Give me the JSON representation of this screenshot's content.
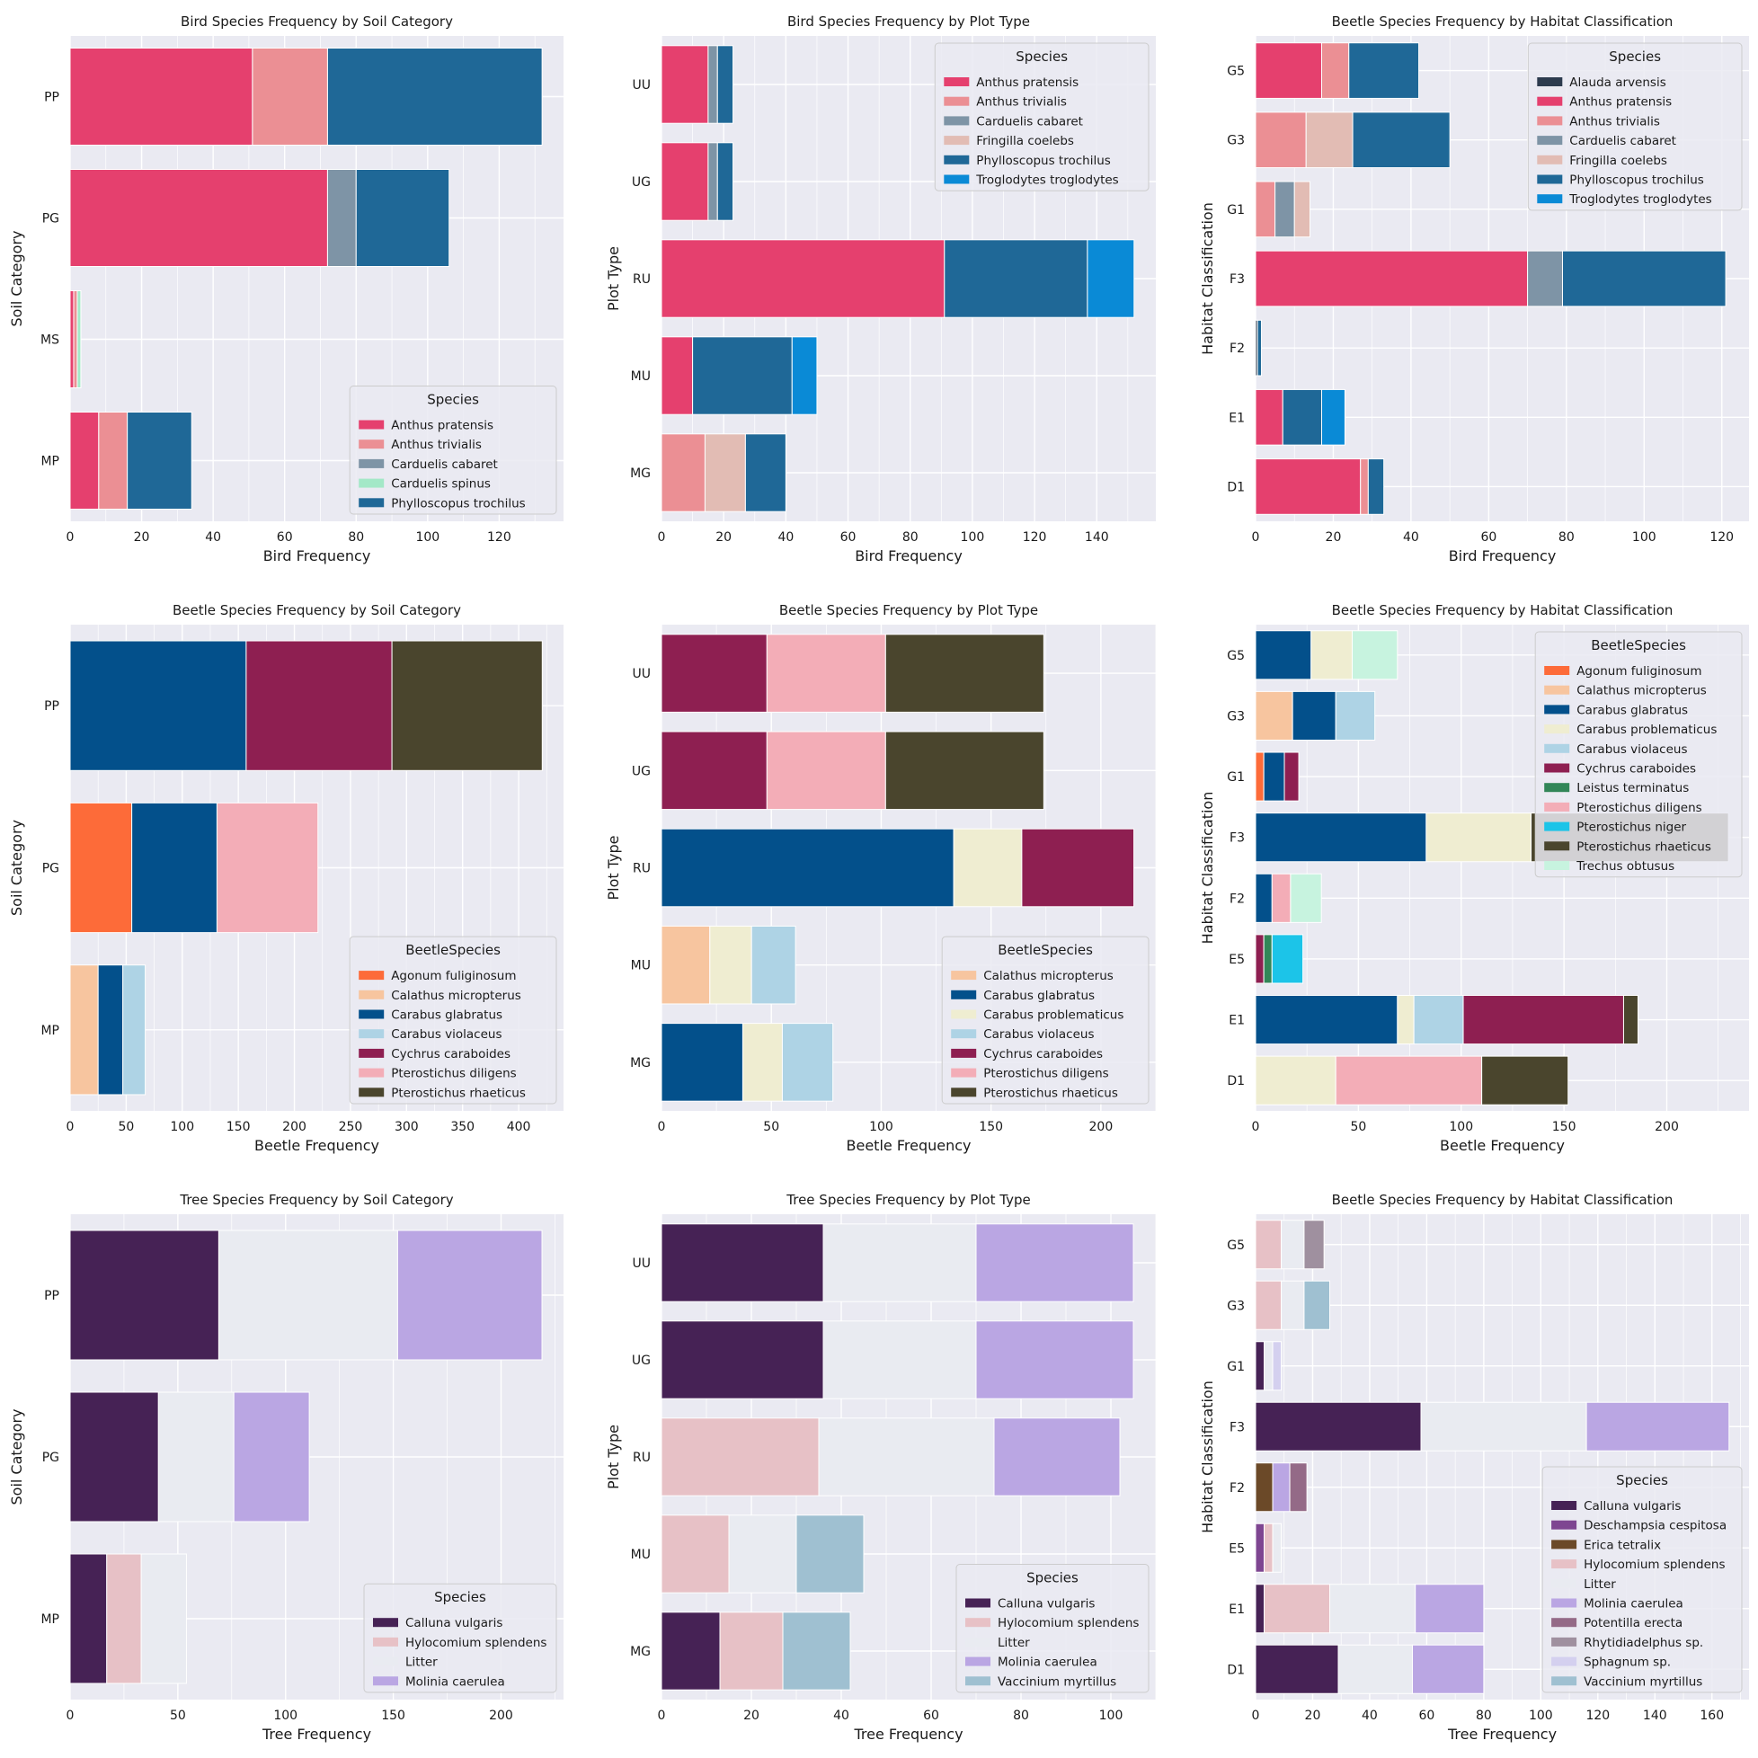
{
  "colors": {
    "Anthus pratensis": "#e5406e",
    "Anthus trivialis": "#eb8f94",
    "Carduelis cabaret": "#7e94a6",
    "Carduelis spinus": "#a3e8c7",
    "Phylloscopus trochilus": "#1f6897",
    "Troglodytes troglodytes": "#0a8ad6",
    "Fringilla coelebs": "#e2bcb4",
    "Alauda arvensis": "#2d3b4e",
    "Agonum fuliginosum": "#fd6b39",
    "Calathus micropterus": "#f7c59f",
    "Carabus glabratus": "#03508b",
    "Carabus problematicus": "#efedd1",
    "Carabus violaceus": "#aed3e5",
    "Cychrus caraboides": "#8e1f51",
    "Leistus terminatus": "#328658",
    "Pterostichus diligens": "#f3adb7",
    "Pterostichus niger": "#1cc4e8",
    "Pterostichus rhaeticus": "#4a452d",
    "Trechus obtusus": "#c7f3df",
    "Calluna vulgaris": "#462255",
    "Hylocomium splendens": "#e7c1c6",
    "Litter": "#e9ebf1",
    "Molinia caerulea": "#baa6e3",
    "Vaccinium myrtillus": "#9fc0d1",
    "Deschampsia cespitosa": "#7e4691",
    "Erica tetralix": "#6b4928",
    "Potentilla erecta": "#946a87",
    "Rhytidiadelphus sp.": "#9f909f",
    "Sphagnum sp.": "#d4d0ef"
  },
  "chart_data": [
    {
      "type": "bar",
      "orientation": "horizontal",
      "stacked": true,
      "title": "Bird Species Frequency by Soil Category",
      "xlabel": "Bird Frequency",
      "ylabel": "Soil Category",
      "xlim": [
        0,
        138
      ],
      "xticks": [
        0,
        20,
        40,
        60,
        80,
        100,
        120
      ],
      "categories": [
        "MP",
        "MS",
        "PG",
        "PP"
      ],
      "legend_title": "Species",
      "legend_position": "lower right",
      "series": [
        {
          "name": "Anthus pratensis",
          "values": [
            8,
            1,
            72,
            51
          ]
        },
        {
          "name": "Anthus trivialis",
          "values": [
            8,
            1,
            0,
            21
          ]
        },
        {
          "name": "Carduelis cabaret",
          "values": [
            0,
            0,
            8,
            0
          ]
        },
        {
          "name": "Carduelis spinus",
          "values": [
            0,
            1,
            0,
            0
          ]
        },
        {
          "name": "Phylloscopus trochilus",
          "values": [
            18,
            0,
            26,
            60
          ]
        }
      ]
    },
    {
      "type": "bar",
      "orientation": "horizontal",
      "stacked": true,
      "title": "Bird Species Frequency by Plot Type",
      "xlabel": "Bird Frequency",
      "ylabel": "Plot Type",
      "xlim": [
        0,
        159
      ],
      "xticks": [
        0,
        20,
        40,
        60,
        80,
        100,
        120,
        140
      ],
      "categories": [
        "MG",
        "MU",
        "RU",
        "UG",
        "UU"
      ],
      "legend_title": "Species",
      "legend_position": "upper right",
      "series": [
        {
          "name": "Anthus pratensis",
          "values": [
            0,
            10,
            91,
            15,
            15
          ]
        },
        {
          "name": "Anthus trivialis",
          "values": [
            14,
            0,
            0,
            0,
            0
          ]
        },
        {
          "name": "Carduelis cabaret",
          "values": [
            0,
            0,
            0,
            3,
            3
          ]
        },
        {
          "name": "Fringilla coelebs",
          "values": [
            13,
            0,
            0,
            0,
            0
          ]
        },
        {
          "name": "Phylloscopus trochilus",
          "values": [
            13,
            32,
            46,
            5,
            5
          ]
        },
        {
          "name": "Troglodytes troglodytes",
          "values": [
            0,
            8,
            15,
            0,
            0
          ]
        }
      ]
    },
    {
      "type": "bar",
      "orientation": "horizontal",
      "stacked": true,
      "title": "Beetle Species Frequency by Habitat Classification",
      "xlabel": "Bird Frequency",
      "ylabel": "Habitat Classification",
      "xlim": [
        0,
        127
      ],
      "xticks": [
        0,
        20,
        40,
        60,
        80,
        100,
        120
      ],
      "categories": [
        "D1",
        "E1",
        "F2",
        "F3",
        "G1",
        "G3",
        "G5"
      ],
      "legend_title": "Species",
      "legend_position": "upper right",
      "series": [
        {
          "name": "Alauda arvensis",
          "values": [
            0,
            0,
            0.5,
            0,
            0,
            0,
            0
          ]
        },
        {
          "name": "Anthus pratensis",
          "values": [
            27,
            7,
            0,
            70,
            0,
            0,
            17
          ]
        },
        {
          "name": "Anthus trivialis",
          "values": [
            2,
            0,
            0,
            0,
            5,
            13,
            7
          ]
        },
        {
          "name": "Carduelis cabaret",
          "values": [
            0,
            0,
            0,
            9,
            5,
            0,
            0
          ]
        },
        {
          "name": "Fringilla coelebs",
          "values": [
            0,
            0,
            0,
            0,
            4,
            12,
            0
          ]
        },
        {
          "name": "Phylloscopus trochilus",
          "values": [
            4,
            10,
            1,
            42,
            0,
            25,
            18
          ]
        },
        {
          "name": "Troglodytes troglodytes",
          "values": [
            0,
            6,
            0,
            0,
            0,
            0,
            0
          ]
        }
      ]
    },
    {
      "type": "bar",
      "orientation": "horizontal",
      "stacked": true,
      "title": "Beetle Species Frequency by Soil Category",
      "xlabel": "Beetle Frequency",
      "ylabel": "Soil Category",
      "xlim": [
        0,
        440
      ],
      "xticks": [
        0,
        50,
        100,
        150,
        200,
        250,
        300,
        350,
        400
      ],
      "categories": [
        "MP",
        "PG",
        "PP"
      ],
      "legend_title": "BeetleSpecies",
      "legend_position": "lower right",
      "series": [
        {
          "name": "Agonum fuliginosum",
          "values": [
            0,
            55,
            0
          ]
        },
        {
          "name": "Calathus micropterus",
          "values": [
            25,
            0,
            0
          ]
        },
        {
          "name": "Carabus glabratus",
          "values": [
            22,
            76,
            157
          ]
        },
        {
          "name": "Carabus violaceus",
          "values": [
            20,
            0,
            0
          ]
        },
        {
          "name": "Cychrus caraboides",
          "values": [
            0,
            0,
            130
          ]
        },
        {
          "name": "Pterostichus diligens",
          "values": [
            0,
            90,
            0
          ]
        },
        {
          "name": "Pterostichus rhaeticus",
          "values": [
            0,
            0,
            134
          ]
        }
      ]
    },
    {
      "type": "bar",
      "orientation": "horizontal",
      "stacked": true,
      "title": "Beetle Species Frequency by Plot Type",
      "xlabel": "Beetle Frequency",
      "ylabel": "Plot Type",
      "xlim": [
        0,
        225
      ],
      "xticks": [
        0,
        50,
        100,
        150,
        200
      ],
      "categories": [
        "MG",
        "MU",
        "RU",
        "UG",
        "UU"
      ],
      "legend_title": "BeetleSpecies",
      "legend_position": "lower right",
      "series": [
        {
          "name": "Calathus micropterus",
          "values": [
            0,
            22,
            0,
            0,
            0
          ]
        },
        {
          "name": "Carabus glabratus",
          "values": [
            37,
            0,
            133,
            0,
            0
          ]
        },
        {
          "name": "Carabus problematicus",
          "values": [
            18,
            19,
            31,
            0,
            0
          ]
        },
        {
          "name": "Carabus violaceus",
          "values": [
            23,
            20,
            0,
            0,
            0
          ]
        },
        {
          "name": "Cychrus caraboides",
          "values": [
            0,
            0,
            51,
            48,
            48
          ]
        },
        {
          "name": "Pterostichus diligens",
          "values": [
            0,
            0,
            0,
            54,
            54
          ]
        },
        {
          "name": "Pterostichus rhaeticus",
          "values": [
            0,
            0,
            0,
            72,
            72
          ]
        }
      ]
    },
    {
      "type": "bar",
      "orientation": "horizontal",
      "stacked": true,
      "title": "Beetle Species Frequency by Habitat Classification",
      "xlabel": "Beetle Frequency",
      "ylabel": "Habitat Classification",
      "xlim": [
        0,
        240
      ],
      "xticks": [
        0,
        50,
        100,
        150,
        200
      ],
      "categories": [
        "D1",
        "E1",
        "E5",
        "F2",
        "F3",
        "G1",
        "G3",
        "G5"
      ],
      "legend_title": "BeetleSpecies",
      "legend_position": "upper right",
      "series": [
        {
          "name": "Agonum fuliginosum",
          "values": [
            0,
            0,
            0,
            0,
            0,
            4,
            0,
            0
          ]
        },
        {
          "name": "Calathus micropterus",
          "values": [
            0,
            0,
            0,
            0,
            0,
            0,
            18,
            0
          ]
        },
        {
          "name": "Carabus glabratus",
          "values": [
            0,
            69,
            0,
            8,
            83,
            10,
            21,
            27
          ]
        },
        {
          "name": "Carabus problematicus",
          "values": [
            39,
            8,
            0,
            0,
            51,
            0,
            0,
            20
          ]
        },
        {
          "name": "Carabus violaceus",
          "values": [
            0,
            24,
            0,
            0,
            0,
            0,
            19,
            0
          ]
        },
        {
          "name": "Cychrus caraboides",
          "values": [
            0,
            78,
            4,
            0,
            0,
            7,
            0,
            0
          ]
        },
        {
          "name": "Leistus terminatus",
          "values": [
            0,
            0,
            4,
            0,
            0,
            0,
            0,
            0
          ]
        },
        {
          "name": "Pterostichus diligens",
          "values": [
            71,
            0,
            0,
            9,
            0,
            0,
            0,
            0
          ]
        },
        {
          "name": "Pterostichus niger",
          "values": [
            0,
            0,
            15,
            0,
            0,
            0,
            0,
            0
          ]
        },
        {
          "name": "Pterostichus rhaeticus",
          "values": [
            42,
            7,
            0,
            0,
            96,
            0,
            0,
            0
          ]
        },
        {
          "name": "Trechus obtusus",
          "values": [
            0,
            0,
            0,
            15,
            0,
            0,
            0,
            22
          ]
        }
      ]
    },
    {
      "type": "bar",
      "orientation": "horizontal",
      "stacked": true,
      "title": "Tree Species Frequency by Soil Category",
      "xlabel": "Tree Frequency",
      "ylabel": "Soil Category",
      "xlim": [
        0,
        229
      ],
      "xticks": [
        0,
        50,
        100,
        150,
        200
      ],
      "categories": [
        "MP",
        "PG",
        "PP"
      ],
      "legend_title": "Species",
      "legend_position": "lower right",
      "series": [
        {
          "name": "Calluna vulgaris",
          "values": [
            17,
            41,
            69
          ]
        },
        {
          "name": "Hylocomium splendens",
          "values": [
            16,
            0,
            0
          ]
        },
        {
          "name": "Litter",
          "values": [
            21,
            35,
            83
          ]
        },
        {
          "name": "Molinia caerulea",
          "values": [
            0,
            35,
            67
          ]
        }
      ]
    },
    {
      "type": "bar",
      "orientation": "horizontal",
      "stacked": true,
      "title": "Tree Species Frequency by Plot Type",
      "xlabel": "Tree Frequency",
      "ylabel": "Plot Type",
      "xlim": [
        0,
        110
      ],
      "xticks": [
        0,
        20,
        40,
        60,
        80,
        100
      ],
      "categories": [
        "MG",
        "MU",
        "RU",
        "UG",
        "UU"
      ],
      "legend_title": "Species",
      "legend_position": "lower right",
      "series": [
        {
          "name": "Calluna vulgaris",
          "values": [
            13,
            0,
            0,
            36,
            36
          ]
        },
        {
          "name": "Hylocomium splendens",
          "values": [
            14,
            15,
            35,
            0,
            0
          ]
        },
        {
          "name": "Litter",
          "values": [
            0,
            15,
            39,
            34,
            34
          ]
        },
        {
          "name": "Molinia caerulea",
          "values": [
            0,
            0,
            28,
            35,
            35
          ]
        },
        {
          "name": "Vaccinium myrtillus",
          "values": [
            15,
            15,
            0,
            0,
            0
          ]
        }
      ]
    },
    {
      "type": "bar",
      "orientation": "horizontal",
      "stacked": true,
      "title": "Beetle Species Frequency by Habitat Classification",
      "xlabel": "Tree Frequency",
      "ylabel": "Habitat Classification",
      "xlim": [
        0,
        173
      ],
      "xticks": [
        0,
        20,
        40,
        60,
        80,
        100,
        120,
        140,
        160
      ],
      "categories": [
        "D1",
        "E1",
        "E5",
        "F2",
        "F3",
        "G1",
        "G3",
        "G5"
      ],
      "legend_title": "Species",
      "legend_position": "lower right",
      "series": [
        {
          "name": "Calluna vulgaris",
          "values": [
            29,
            3,
            0,
            0,
            58,
            3,
            0,
            0
          ]
        },
        {
          "name": "Deschampsia cespitosa",
          "values": [
            0,
            0,
            3,
            0,
            0,
            0,
            0,
            0
          ]
        },
        {
          "name": "Erica tetralix",
          "values": [
            0,
            0,
            0,
            6,
            0,
            0,
            0,
            0
          ]
        },
        {
          "name": "Hylocomium splendens",
          "values": [
            0,
            23,
            3,
            0,
            0,
            0,
            9,
            9
          ]
        },
        {
          "name": "Litter",
          "values": [
            26,
            30,
            3,
            0,
            58,
            3,
            8,
            8
          ]
        },
        {
          "name": "Molinia caerulea",
          "values": [
            25,
            24,
            0,
            6,
            50,
            0,
            0,
            0
          ]
        },
        {
          "name": "Potentilla erecta",
          "values": [
            0,
            0,
            0,
            6,
            0,
            0,
            0,
            0
          ]
        },
        {
          "name": "Rhytidiadelphus sp.",
          "values": [
            0,
            0,
            0,
            0,
            0,
            0,
            0,
            7
          ]
        },
        {
          "name": "Sphagnum sp.",
          "values": [
            0,
            0,
            0,
            0,
            0,
            3,
            0,
            0
          ]
        },
        {
          "name": "Vaccinium myrtillus",
          "values": [
            0,
            0,
            0,
            0,
            0,
            0,
            9,
            0
          ]
        }
      ]
    }
  ]
}
